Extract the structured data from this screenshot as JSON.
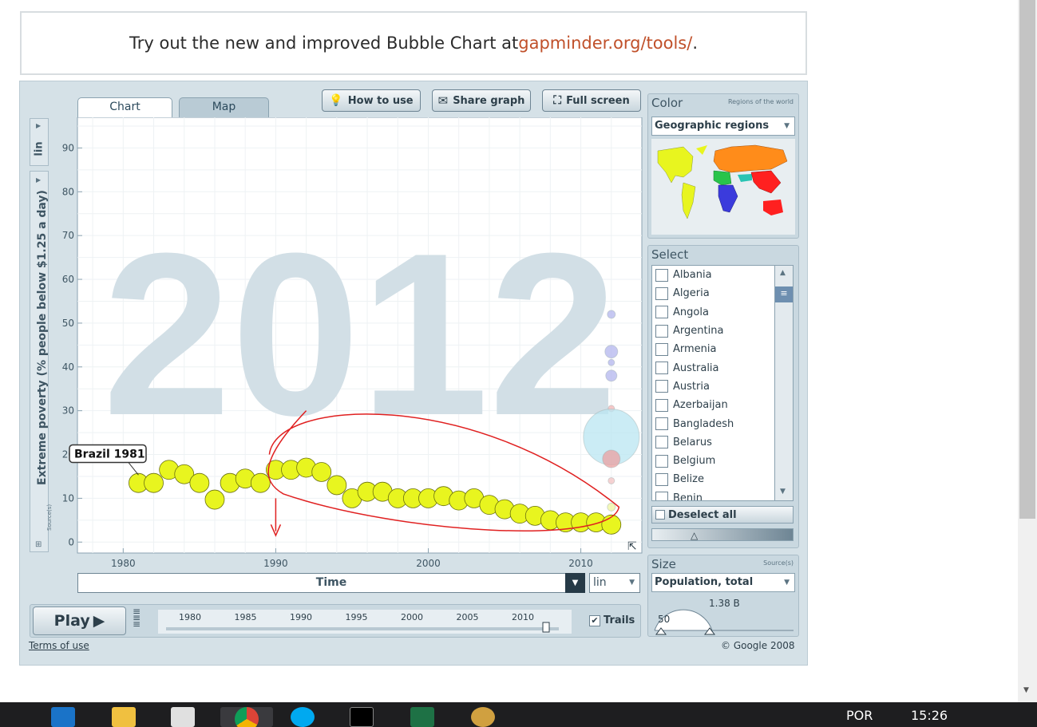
{
  "banner": {
    "text": "Try out the new and improved Bubble Chart at ",
    "link": "gapminder.org/tools/",
    "suffix": "."
  },
  "tabs": [
    {
      "label": "Chart",
      "active": true
    },
    {
      "label": "Map",
      "active": false
    }
  ],
  "toolbar": {
    "how_to_use": "How to use",
    "share_graph": "Share graph",
    "full_screen": "Full screen"
  },
  "chart": {
    "year_watermark": "2012",
    "y_scale": "lin",
    "y_axis_title": "Extreme poverty (% people below $1.25 a day)",
    "source_label": "Source(s)",
    "x_axis_title": "Time",
    "x_scale": "lin",
    "tooltip": "Brazil 1981"
  },
  "chart_data": {
    "type": "scatter",
    "title": "",
    "xlabel": "Time",
    "ylabel": "Extreme poverty (% people below $1.25 a day)",
    "xlim": [
      1977,
      2014
    ],
    "ylim": [
      -2.5,
      97
    ],
    "x_ticks": [
      1980,
      1990,
      2000,
      2010
    ],
    "y_ticks": [
      0,
      10,
      20,
      30,
      40,
      50,
      60,
      70,
      80,
      90
    ],
    "series": [
      {
        "name": "Brazil 1981",
        "color": "#e8f51f",
        "x": [
          1981,
          1982,
          1983,
          1984,
          1985,
          1986,
          1987,
          1988,
          1989,
          1990,
          1991,
          1992,
          1993,
          1994,
          1995,
          1996,
          1997,
          1998,
          1999,
          2000,
          2001,
          2002,
          2003,
          2004,
          2005,
          2006,
          2007,
          2008,
          2009,
          2010,
          2011,
          2012
        ],
        "y": [
          13.5,
          13.5,
          16.5,
          15.5,
          13.5,
          9.7,
          13.5,
          14.5,
          13.5,
          16.5,
          16.5,
          17.0,
          16.0,
          13.0,
          10.0,
          11.5,
          11.5,
          10.0,
          10.0,
          10.0,
          10.5,
          9.5,
          10.0,
          8.5,
          7.5,
          6.5,
          6.0,
          5.0,
          4.5,
          4.5,
          4.5,
          4.0
        ]
      }
    ],
    "other_bubbles": [
      {
        "x": 2012,
        "y": 52,
        "color": "#b3b5ee"
      },
      {
        "x": 2012,
        "y": 43.5,
        "color": "#b3b5ee"
      },
      {
        "x": 2012,
        "y": 41,
        "color": "#b3b5ee"
      },
      {
        "x": 2012,
        "y": 38,
        "color": "#b3b5ee"
      },
      {
        "x": 2012,
        "y": 30.5,
        "color": "#f3b5b5"
      },
      {
        "x": 2012,
        "y": 24,
        "color": "#b9e6f2"
      },
      {
        "x": 2012,
        "y": 19,
        "color": "#eba0a0"
      },
      {
        "x": 2012,
        "y": 14,
        "color": "#f3c3c3"
      },
      {
        "x": 2012,
        "y": 8,
        "color": "#f0f5a0"
      }
    ]
  },
  "playbar": {
    "play_label": "Play",
    "years": [
      "1980",
      "1985",
      "1990",
      "1995",
      "2000",
      "2005",
      "2010"
    ],
    "trails_label": "Trails",
    "trails_checked": true
  },
  "color_panel": {
    "title": "Color",
    "subtitle": "Regions of the world",
    "dropdown": "Geographic regions"
  },
  "select_panel": {
    "title": "Select",
    "items": [
      "Albania",
      "Algeria",
      "Angola",
      "Argentina",
      "Armenia",
      "Australia",
      "Austria",
      "Azerbaijan",
      "Bangladesh",
      "Belarus",
      "Belgium",
      "Belize",
      "Benin"
    ],
    "deselect_all": "Deselect all"
  },
  "size_panel": {
    "title": "Size",
    "source_label": "Source(s)",
    "dropdown": "Population, total",
    "max_label": "1.38 B",
    "min_label": "50"
  },
  "footer": {
    "terms": "Terms of use",
    "copyright": "© Google 2008"
  },
  "taskbar": {
    "language": "POR",
    "time": "15:26"
  },
  "colors": {
    "brazil_bubble": "#e8f51f",
    "app_bg": "#d5e1e7",
    "annotation_red": "#e02020",
    "link": "#c0502a"
  }
}
